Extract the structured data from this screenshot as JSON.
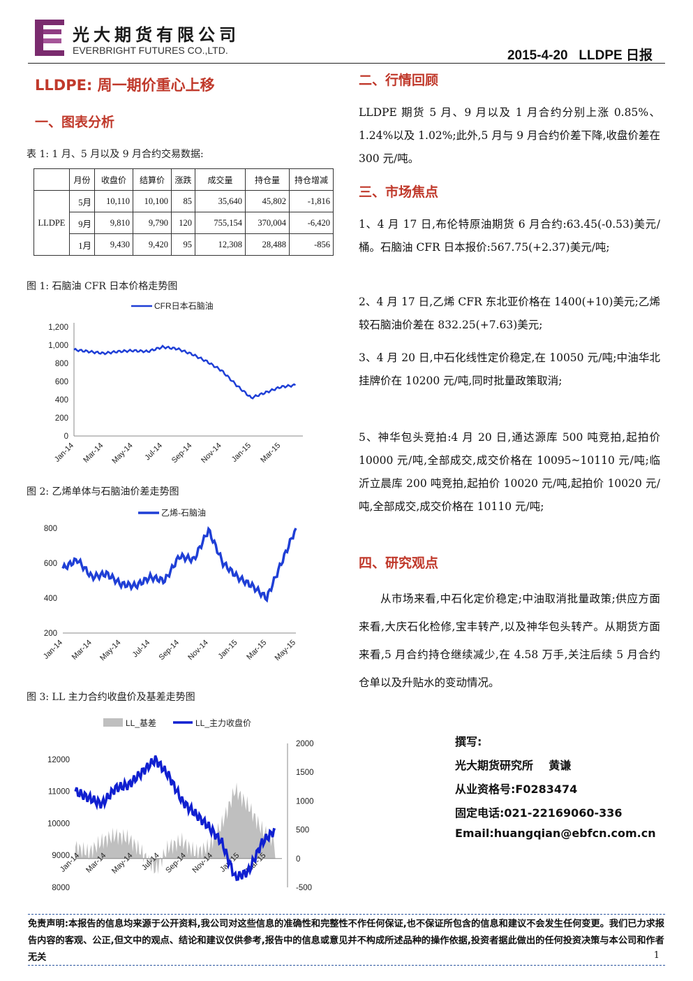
{
  "header": {
    "company_cn": "光大期货有限公司",
    "company_en": "EVERBRIGHT FUTURES CO.,LTD.",
    "date_title": "2015-4-20   LLDPE 日报"
  },
  "title": "LLDPE: 周一期价重心上移",
  "section1": "一、图表分析",
  "table1": {
    "caption": "表 1:  1 月、5 月以及 9 月合约交易数据:",
    "headers": [
      "月份",
      "收盘价",
      "结算价",
      "涨跌",
      "成交量",
      "持仓量",
      "持仓增减"
    ],
    "category": "LLDPE",
    "rows": [
      [
        "5月",
        "10,110",
        "10,100",
        "85",
        "35,640",
        "45,802",
        "-1,816"
      ],
      [
        "9月",
        "9,810",
        "9,790",
        "120",
        "755,154",
        "370,004",
        "-6,420"
      ],
      [
        "1月",
        "9,430",
        "9,420",
        "95",
        "12,308",
        "28,488",
        "-856"
      ]
    ]
  },
  "fig1_caption": "图 1:  石脑油 CFR 日本价格走势图",
  "fig2_caption": "图 2:  乙烯单体与石脑油价差走势图",
  "fig3_caption": "图 3:  LL 主力合约收盘价及基差走势图",
  "chart_data": [
    {
      "type": "line",
      "series": [
        {
          "name": "CFR日本石脑油",
          "color": "#1f3fd6",
          "x": [
            "2014-01",
            "2014-02",
            "2014-03",
            "2014-04",
            "2014-05",
            "2014-06",
            "2014-07",
            "2014-08",
            "2014-09",
            "2014-10",
            "2014-11",
            "2014-12",
            "2015-01",
            "2015-02",
            "2015-03",
            "2015-04"
          ],
          "values": [
            950,
            930,
            910,
            930,
            940,
            930,
            980,
            960,
            900,
            820,
            720,
            560,
            420,
            480,
            540,
            560
          ]
        }
      ],
      "x_ticks": [
        "Jan-14",
        "Mar-14",
        "May-14",
        "Jul-14",
        "Sep-14",
        "Nov-14",
        "Jan-15",
        "Mar-15"
      ],
      "y_ticks": [
        "0",
        "200",
        "400",
        "600",
        "800",
        "1,000",
        "1,200"
      ],
      "ylim": [
        0,
        1200
      ],
      "legend": "top"
    },
    {
      "type": "line",
      "series": [
        {
          "name": "乙烯-石脑油",
          "color": "#1f3fd6",
          "x": [
            "2014-01",
            "2014-02",
            "2014-03",
            "2014-04",
            "2014-05",
            "2014-06",
            "2014-07",
            "2014-08",
            "2014-09",
            "2014-10",
            "2014-11",
            "2014-12",
            "2015-01",
            "2015-02",
            "2015-03",
            "2015-04",
            "2015-05"
          ],
          "values": [
            570,
            620,
            520,
            540,
            480,
            470,
            520,
            500,
            640,
            620,
            790,
            600,
            520,
            470,
            400,
            600,
            800
          ]
        }
      ],
      "x_ticks": [
        "Jan-14",
        "Mar-14",
        "May-14",
        "Jul-14",
        "Sep-14",
        "Nov-14",
        "Jan-15",
        "Mar-15",
        "May-15"
      ],
      "y_ticks": [
        "200",
        "400",
        "600",
        "800"
      ],
      "ylim": [
        200,
        800
      ],
      "legend": "top"
    },
    {
      "type": "line",
      "series": [
        {
          "name": "LL_基差",
          "color": "#bfbfbf",
          "axis": "right",
          "kind": "area",
          "x": [
            "2014-01",
            "2014-02",
            "2014-03",
            "2014-04",
            "2014-05",
            "2014-06",
            "2014-07",
            "2014-08",
            "2014-09",
            "2014-10",
            "2014-11",
            "2014-12",
            "2015-01",
            "2015-02",
            "2015-03",
            "2015-04"
          ],
          "values": [
            200,
            100,
            300,
            400,
            350,
            100,
            -200,
            200,
            300,
            100,
            200,
            600,
            1200,
            900,
            500,
            300
          ]
        },
        {
          "name": "LL_主力收盘价",
          "color": "#1020d0",
          "axis": "left",
          "kind": "line",
          "x": [
            "2014-01",
            "2014-02",
            "2014-03",
            "2014-04",
            "2014-05",
            "2014-06",
            "2014-07",
            "2014-08",
            "2014-09",
            "2014-10",
            "2014-11",
            "2014-12",
            "2015-01",
            "2015-02",
            "2015-03",
            "2015-04"
          ],
          "values": [
            11000,
            10800,
            10600,
            11100,
            11200,
            11600,
            12000,
            11500,
            10700,
            10300,
            9900,
            9400,
            8300,
            8500,
            9400,
            9800
          ]
        }
      ],
      "x_ticks": [
        "Jan-14",
        "Mar-14",
        "May-14",
        "Jul-14",
        "Sep-14",
        "Nov-14",
        "Jan-15",
        "Mar-15"
      ],
      "y_ticks_left": [
        "8000",
        "9000",
        "10000",
        "11000",
        "12000"
      ],
      "y_ticks_right": [
        "-500",
        "0",
        "500",
        "1000",
        "1500",
        "2000"
      ],
      "ylim_left": [
        8000,
        12500
      ],
      "ylim_right": [
        -500,
        2000
      ],
      "legend": "top"
    }
  ],
  "section2": "二、行情回顾",
  "review_text": "LLDPE 期货 5 月、9 月以及 1 月合约分别上涨 0.85%、1.24%以及 1.02%;此外,5 月与 9 月合约价差下降,收盘价差在 300 元/吨。",
  "section3": "三、市场焦点",
  "focus": [
    "1、4 月 17 日,布伦特原油期货 6 月合约:63.45(-0.53)美元/桶。石脑油 CFR 日本报价:567.75(+2.37)美元/吨;",
    "2、4 月 17 日,乙烯 CFR 东北亚价格在 1400(+10)美元;乙烯较石脑油价差在 832.25(+7.63)美元;",
    "3、4 月 20 日,中石化线性定价稳定,在 10050 元/吨;中油华北挂牌价在 10200 元/吨,同时批量政策取消;",
    "5、神华包头竞拍:4 月 20 日,通达源库 500 吨竞拍,起拍价 10000 元/吨,全部成交,成交价格在 10095~10110 元/吨;临沂立晨库 200 吨竞拍,起拍价 10020 元/吨,起拍价 10020 元/吨,全部成交,成交价格在 10110 元/吨;"
  ],
  "section4": "四、研究观点",
  "opinion_text": "从市场来看,中石化定价稳定;中油取消批量政策;供应方面来看,大庆石化检修,宝丰转产,以及神华包头转产。从期货方面来看,5 月合约持仓继续减少,在 4.58 万手,关注后续 5 月合约仓单以及升贴水的变动情况。",
  "signature": {
    "l1": "撰写:",
    "l2": "光大期货研究所    黄谦",
    "l3": "从业资格号:F0283474",
    "l4": "固定电话:021-22169060-336",
    "l5": "Email:huangqian@ebfcn.com.cn"
  },
  "disclaimer": "免责声明:本报告的信息均来源于公开资料,我公司对这些信息的准确性和完整性不作任何保证,也不保证所包含的信息和建议不会发生任何变更。我们已力求报告内容的客观、公正,但文中的观点、结论和建议仅供参考,报告中的信息或意见并不构成所述品种的操作依据,投资者据此做出的任何投资决策与本公司和作者无关",
  "page_number": "1"
}
